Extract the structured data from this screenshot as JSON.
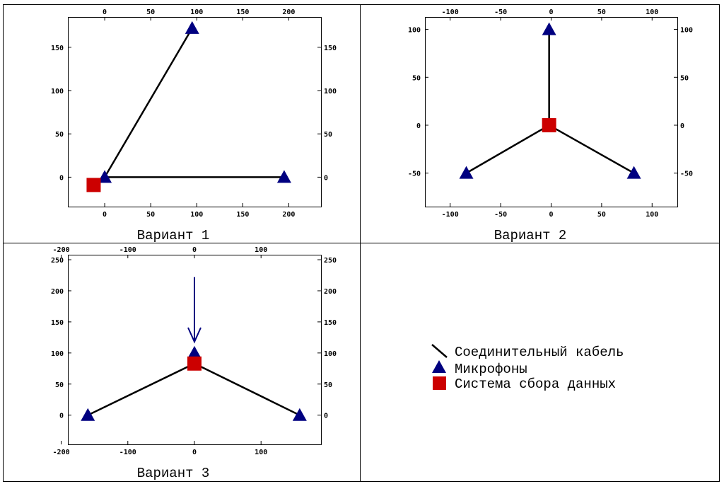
{
  "colors": {
    "microphone": "#000080",
    "daq": "#cc0000",
    "cable": "#000000",
    "arrow": "#000080"
  },
  "legend": {
    "cable_label": "Соединительный кабель",
    "microphones_label": "Микрофоны",
    "daq_label": "Система сбора данных"
  },
  "chart_data": [
    {
      "type": "scatter",
      "title": "Вариант 1",
      "xlim": [
        -40,
        235
      ],
      "ylim": [
        -34,
        185
      ],
      "xticks": [
        0,
        50,
        100,
        150,
        200
      ],
      "yticks": [
        0,
        50,
        100,
        150
      ],
      "microphones": [
        [
          0,
          0
        ],
        [
          95,
          172
        ],
        [
          195,
          0
        ]
      ],
      "daq": [
        -12,
        -9
      ],
      "cables": [
        [
          [
            0,
            0
          ],
          [
            95,
            172
          ]
        ],
        [
          [
            0,
            0
          ],
          [
            195,
            0
          ]
        ]
      ],
      "arrow": null
    },
    {
      "type": "scatter",
      "title": "Вариант 2",
      "xlim": [
        -125,
        125
      ],
      "ylim": [
        -85,
        113
      ],
      "xticks": [
        -100,
        -50,
        0,
        50,
        100
      ],
      "yticks": [
        -50,
        0,
        50,
        100
      ],
      "microphones": [
        [
          -84,
          -50
        ],
        [
          -2,
          100
        ],
        [
          82,
          -50
        ]
      ],
      "daq": [
        -2,
        0
      ],
      "cables": [
        [
          [
            -2,
            0
          ],
          [
            -2,
            100
          ]
        ],
        [
          [
            -2,
            0
          ],
          [
            -84,
            -50
          ]
        ],
        [
          [
            -2,
            0
          ],
          [
            82,
            -50
          ]
        ]
      ],
      "arrow": null
    },
    {
      "type": "scatter",
      "title": "Вариант 3",
      "xlim": [
        -190,
        190
      ],
      "ylim": [
        -47,
        258
      ],
      "xticks": [
        -200,
        -100,
        0,
        100
      ],
      "yticks": [
        0,
        50,
        100,
        150,
        200,
        250
      ],
      "microphones": [
        [
          -160,
          0
        ],
        [
          0,
          100
        ],
        [
          158,
          0
        ]
      ],
      "daq": [
        0,
        83
      ],
      "cables": [
        [
          [
            0,
            83
          ],
          [
            -160,
            0
          ]
        ],
        [
          [
            0,
            83
          ],
          [
            158,
            0
          ]
        ]
      ],
      "arrow": {
        "from": [
          0,
          222
        ],
        "to": [
          0,
          118
        ]
      }
    }
  ]
}
